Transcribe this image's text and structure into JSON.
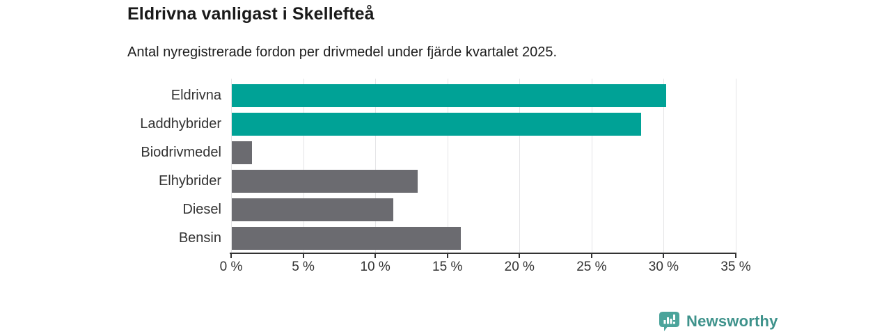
{
  "title": "Eldrivna vanligast i Skellefteå",
  "subtitle": "Antal nyregistrerade fordon per drivmedel under fjärde kvartalet 2025.",
  "branding": {
    "logo_text": "Newsworthy",
    "logo_icon": "newsworthy-speech-bubble-bar-chart-icon",
    "text_color": "#3e928b",
    "icon_color": "#4ba49b"
  },
  "colors": {
    "accent_teal": "#00a296",
    "neutral_gray": "#6b6b70",
    "gridline": "#e4e4e6",
    "axis": "#333333",
    "text": "#1d1d1d"
  },
  "chart_data": {
    "type": "bar",
    "orientation": "horizontal",
    "title": "Eldrivna vanligast i Skellefteå",
    "subtitle": "Antal nyregistrerade fordon per drivmedel under fjärde kvartalet 2025.",
    "categories": [
      "Eldrivna",
      "Laddhybrider",
      "Biodrivmedel",
      "Elhybrider",
      "Diesel",
      "Bensin"
    ],
    "values": [
      30.1,
      28.4,
      1.4,
      12.9,
      11.2,
      15.9
    ],
    "bar_colors": [
      "#00a296",
      "#00a296",
      "#6b6b70",
      "#6b6b70",
      "#6b6b70",
      "#6b6b70"
    ],
    "unit": "%",
    "xlabel": "",
    "ylabel": "",
    "xlim": [
      0,
      35
    ],
    "x_tick_values": [
      0,
      5,
      10,
      15,
      20,
      25,
      30,
      35
    ],
    "x_tick_labels": [
      "0 %",
      "5 %",
      "10 %",
      "15 %",
      "20 %",
      "25 %",
      "30 %",
      "35 %"
    ],
    "grid": true,
    "legend": false
  }
}
